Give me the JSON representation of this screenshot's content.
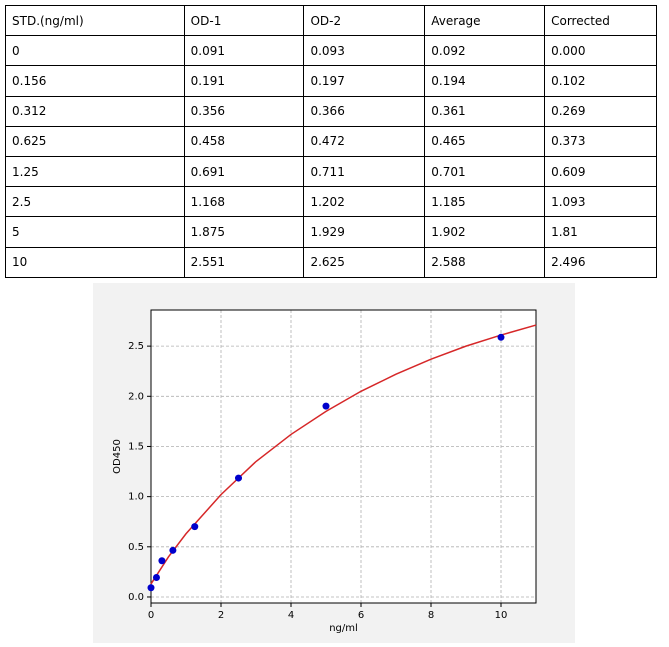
{
  "table": {
    "header": [
      "STD.(ng/ml)",
      "OD-1",
      "OD-2",
      "Average",
      "Corrected"
    ],
    "rows": [
      [
        "0",
        "0.091",
        "0.093",
        "0.092",
        "0.000"
      ],
      [
        "0.156",
        "0.191",
        "0.197",
        "0.194",
        "0.102"
      ],
      [
        "0.312",
        "0.356",
        "0.366",
        "0.361",
        "0.269"
      ],
      [
        "0.625",
        "0.458",
        "0.472",
        "0.465",
        "0.373"
      ],
      [
        "1.25",
        "0.691",
        "0.711",
        "0.701",
        "0.609"
      ],
      [
        "2.5",
        "1.168",
        "1.202",
        "1.185",
        "1.093"
      ],
      [
        "5",
        "1.875",
        "1.929",
        "1.902",
        "1.81"
      ],
      [
        "10",
        "2.551",
        "2.625",
        "2.588",
        "2.496"
      ]
    ]
  },
  "chart_data": {
    "type": "scatter",
    "x_label": "ng/ml",
    "y_label": "OD450",
    "xlim": [
      0,
      11
    ],
    "ylim": [
      -0.06,
      2.86
    ],
    "xticks": [
      0,
      2,
      4,
      6,
      8,
      10
    ],
    "yticks": [
      {
        "value": 0,
        "label": "0.0"
      },
      {
        "value": 0.5,
        "label": "0.5"
      },
      {
        "value": 1,
        "label": "1.0"
      },
      {
        "value": 1.5,
        "label": "1.5"
      },
      {
        "value": 2,
        "label": "2.0"
      },
      {
        "value": 2.5,
        "label": "2.5"
      }
    ],
    "grid": true,
    "points": {
      "color": "#0000cc",
      "x": [
        0,
        0.156,
        0.312,
        0.625,
        1.25,
        2.5,
        5,
        10
      ],
      "y": [
        0.092,
        0.194,
        0.361,
        0.465,
        0.701,
        1.185,
        1.902,
        2.588
      ]
    },
    "curve": {
      "color": "#d62728",
      "x": [
        0,
        0.5,
        1,
        2,
        3,
        4,
        5,
        6,
        7,
        8,
        9,
        10,
        11
      ],
      "y": [
        0.13,
        0.4,
        0.63,
        1.02,
        1.35,
        1.62,
        1.85,
        2.05,
        2.22,
        2.37,
        2.5,
        2.61,
        2.71
      ]
    }
  }
}
